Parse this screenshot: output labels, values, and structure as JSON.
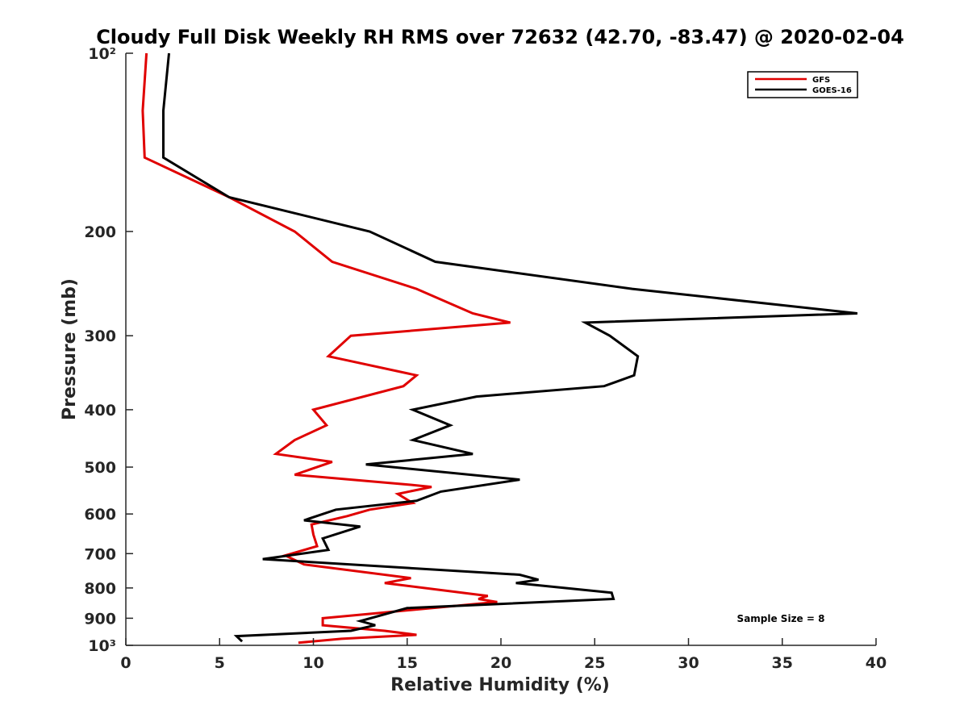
{
  "chart_data": {
    "type": "line",
    "title": "Cloudy Full Disk Weekly RH RMS over 72632 (42.70, -83.47) @ 2020-02-04",
    "xlabel": "Relative Humidity (%)",
    "ylabel": "Pressure (mb)",
    "xlim": [
      0,
      40
    ],
    "ylim": [
      100,
      1000
    ],
    "y_scale": "log",
    "y_reversed": true,
    "x_ticks": [
      0,
      5,
      10,
      15,
      20,
      25,
      30,
      35,
      40
    ],
    "x_tick_labels": [
      "0",
      "5",
      "10",
      "15",
      "20",
      "25",
      "30",
      "35",
      "40"
    ],
    "y_ticks": [
      100,
      200,
      300,
      400,
      500,
      600,
      700,
      800,
      900,
      1000
    ],
    "y_tick_labels": [
      "10²",
      "200",
      "300",
      "400",
      "500",
      "600",
      "700",
      "800",
      "900",
      "10³"
    ],
    "grid": false,
    "legend_position": "top-right",
    "annotation": "Sample Size = 8",
    "series": [
      {
        "name": "GFS",
        "color": "#e00000",
        "points": [
          [
            1.1,
            100
          ],
          [
            0.9,
            125
          ],
          [
            1.0,
            150
          ],
          [
            5.5,
            175
          ],
          [
            9.0,
            200
          ],
          [
            11.0,
            225
          ],
          [
            15.5,
            250
          ],
          [
            18.5,
            275
          ],
          [
            20.5,
            285
          ],
          [
            12.0,
            300
          ],
          [
            10.8,
            325
          ],
          [
            15.5,
            350
          ],
          [
            14.8,
            365
          ],
          [
            10.0,
            400
          ],
          [
            10.7,
            425
          ],
          [
            9.0,
            450
          ],
          [
            8.0,
            475
          ],
          [
            11.0,
            490
          ],
          [
            9.0,
            515
          ],
          [
            15.0,
            535
          ],
          [
            16.3,
            540
          ],
          [
            14.5,
            555
          ],
          [
            15.3,
            575
          ],
          [
            13.0,
            590
          ],
          [
            11.8,
            605
          ],
          [
            9.9,
            625
          ],
          [
            10.0,
            650
          ],
          [
            10.2,
            680
          ],
          [
            8.5,
            705
          ],
          [
            9.5,
            730
          ],
          [
            15.2,
            770
          ],
          [
            13.8,
            785
          ],
          [
            19.3,
            825
          ],
          [
            18.8,
            835
          ],
          [
            19.8,
            845
          ],
          [
            10.5,
            900
          ],
          [
            10.5,
            925
          ],
          [
            13.8,
            945
          ],
          [
            15.5,
            960
          ],
          [
            11.5,
            975
          ],
          [
            9.2,
            990
          ]
        ]
      },
      {
        "name": "GOES-16",
        "color": "#000000",
        "points": [
          [
            2.3,
            100
          ],
          [
            2.0,
            125
          ],
          [
            2.0,
            150
          ],
          [
            5.5,
            175
          ],
          [
            13.0,
            200
          ],
          [
            16.5,
            225
          ],
          [
            27.0,
            250
          ],
          [
            39.0,
            275
          ],
          [
            24.5,
            285
          ],
          [
            25.8,
            300
          ],
          [
            27.3,
            325
          ],
          [
            27.1,
            350
          ],
          [
            25.5,
            365
          ],
          [
            18.7,
            380
          ],
          [
            15.3,
            400
          ],
          [
            17.3,
            425
          ],
          [
            15.3,
            450
          ],
          [
            18.5,
            475
          ],
          [
            12.8,
            495
          ],
          [
            21.0,
            525
          ],
          [
            16.8,
            550
          ],
          [
            15.5,
            570
          ],
          [
            11.2,
            590
          ],
          [
            9.5,
            615
          ],
          [
            12.5,
            630
          ],
          [
            10.5,
            660
          ],
          [
            10.8,
            690
          ],
          [
            7.3,
            715
          ],
          [
            21.0,
            760
          ],
          [
            22.0,
            775
          ],
          [
            20.8,
            785
          ],
          [
            25.9,
            815
          ],
          [
            26.0,
            835
          ],
          [
            15.0,
            865
          ],
          [
            12.5,
            910
          ],
          [
            13.3,
            925
          ],
          [
            12.0,
            945
          ],
          [
            5.9,
            965
          ],
          [
            6.2,
            985
          ]
        ]
      }
    ]
  }
}
